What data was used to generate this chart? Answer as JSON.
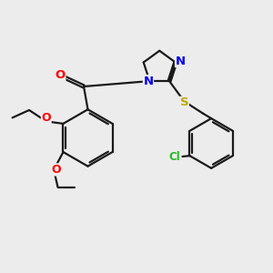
{
  "bg_color": "#ececec",
  "bond_color": "#1a1a1a",
  "bond_width": 1.6,
  "atom_colors": {
    "O": "#ff0000",
    "N": "#0000ee",
    "S": "#bbaa00",
    "Cl": "#22bb22",
    "C": "#1a1a1a"
  },
  "font_size": 8.5,
  "fig_size": [
    3.0,
    3.0
  ],
  "dpi": 100
}
